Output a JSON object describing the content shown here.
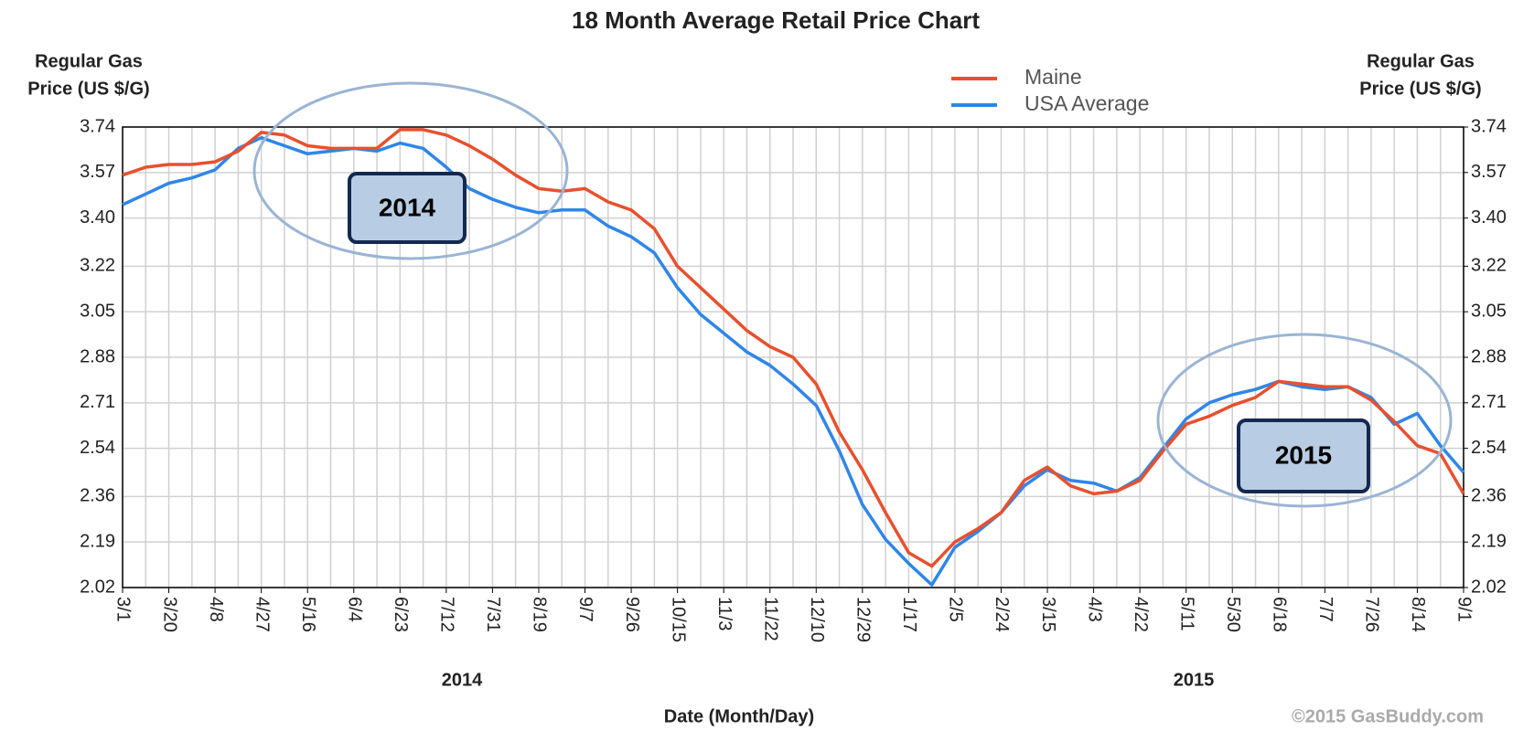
{
  "chart_data": {
    "type": "line",
    "title": "18 Month Average Retail Price Chart",
    "y_label": [
      "Regular Gas",
      "Price (US $/G)"
    ],
    "y2_label": [
      "Regular Gas",
      "Price (US $/G)"
    ],
    "x_label": "Date (Month/Day)",
    "x_groups": [
      "2014",
      "2015"
    ],
    "annotations": [
      "2014",
      "2015"
    ],
    "credit": "©2015 GasBuddy.com",
    "categories": [
      "3/1",
      null,
      "3/20",
      null,
      "4/8",
      null,
      "4/27",
      null,
      "5/16",
      null,
      "6/4",
      null,
      "6/23",
      null,
      "7/12",
      null,
      "7/31",
      null,
      "8/19",
      null,
      "9/7",
      null,
      "9/26",
      null,
      "10/15",
      null,
      "11/3",
      null,
      "11/22",
      null,
      "12/10",
      null,
      "12/29",
      null,
      "1/17",
      null,
      "2/5",
      null,
      "2/24",
      null,
      "3/15",
      null,
      "4/3",
      null,
      "4/22",
      null,
      "5/11",
      null,
      "5/30",
      null,
      "6/18",
      null,
      "7/7",
      null,
      "7/26",
      null,
      "8/14",
      null,
      "9/1"
    ],
    "series": [
      {
        "name": "Maine",
        "color": "#e8502e",
        "values": [
          3.56,
          3.59,
          3.6,
          3.6,
          3.61,
          3.65,
          3.72,
          3.71,
          3.67,
          3.66,
          3.66,
          3.66,
          3.73,
          3.73,
          3.71,
          3.67,
          3.62,
          3.56,
          3.51,
          3.5,
          3.51,
          3.46,
          3.43,
          3.36,
          3.22,
          3.14,
          3.06,
          2.98,
          2.92,
          2.88,
          2.78,
          2.6,
          2.46,
          2.3,
          2.15,
          2.1,
          2.19,
          2.24,
          2.3,
          2.42,
          2.47,
          2.4,
          2.37,
          2.38,
          2.42,
          2.53,
          2.63,
          2.66,
          2.7,
          2.73,
          2.79,
          2.78,
          2.77,
          2.77,
          2.72,
          2.64,
          2.55,
          2.52,
          2.37
        ]
      },
      {
        "name": "USA Average",
        "color": "#2f86e8",
        "values": [
          3.45,
          3.49,
          3.53,
          3.55,
          3.58,
          3.66,
          3.7,
          3.67,
          3.64,
          3.65,
          3.66,
          3.65,
          3.68,
          3.66,
          3.59,
          3.51,
          3.47,
          3.44,
          3.42,
          3.43,
          3.43,
          3.37,
          3.33,
          3.27,
          3.14,
          3.04,
          2.97,
          2.9,
          2.85,
          2.78,
          2.7,
          2.53,
          2.33,
          2.2,
          2.11,
          2.03,
          2.17,
          2.23,
          2.3,
          2.4,
          2.46,
          2.42,
          2.41,
          2.38,
          2.43,
          2.54,
          2.65,
          2.71,
          2.74,
          2.76,
          2.79,
          2.77,
          2.76,
          2.77,
          2.73,
          2.63,
          2.67,
          2.55,
          2.45
        ]
      }
    ],
    "ylim": [
      2.02,
      3.74
    ],
    "yticks": [
      2.02,
      2.19,
      2.36,
      2.54,
      2.71,
      2.88,
      3.05,
      3.22,
      {
        "value": 3.4,
        "label": "3.40"
      },
      3.57,
      3.74
    ],
    "y2lim": [
      2.02,
      3.74
    ],
    "y2ticks": [
      2.02,
      2.19,
      2.36,
      2.54,
      2.71,
      2.88,
      3.05,
      3.22,
      {
        "value": 3.4,
        "label": "3.40"
      },
      3.57,
      3.74
    ],
    "grid": true,
    "legend": "top"
  }
}
